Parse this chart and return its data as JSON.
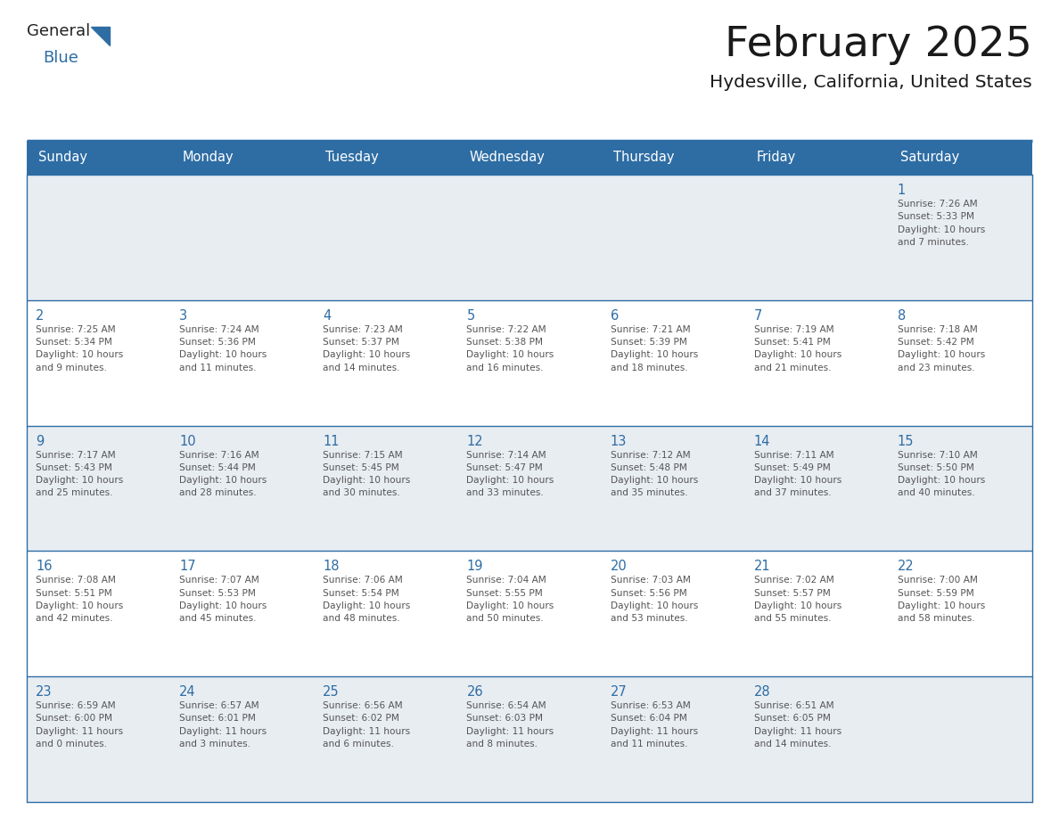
{
  "title": "February 2025",
  "subtitle": "Hydesville, California, United States",
  "header_bg": "#2E6DA4",
  "header_text_color": "#FFFFFF",
  "cell_bg_light": "#E8EDF2",
  "cell_bg_white": "#FFFFFF",
  "day_number_color": "#2E6DA4",
  "text_color": "#555555",
  "line_color": "#2E6DA4",
  "days_of_week": [
    "Sunday",
    "Monday",
    "Tuesday",
    "Wednesday",
    "Thursday",
    "Friday",
    "Saturday"
  ],
  "weeks": [
    [
      {
        "day": "",
        "info": ""
      },
      {
        "day": "",
        "info": ""
      },
      {
        "day": "",
        "info": ""
      },
      {
        "day": "",
        "info": ""
      },
      {
        "day": "",
        "info": ""
      },
      {
        "day": "",
        "info": ""
      },
      {
        "day": "1",
        "info": "Sunrise: 7:26 AM\nSunset: 5:33 PM\nDaylight: 10 hours\nand 7 minutes."
      }
    ],
    [
      {
        "day": "2",
        "info": "Sunrise: 7:25 AM\nSunset: 5:34 PM\nDaylight: 10 hours\nand 9 minutes."
      },
      {
        "day": "3",
        "info": "Sunrise: 7:24 AM\nSunset: 5:36 PM\nDaylight: 10 hours\nand 11 minutes."
      },
      {
        "day": "4",
        "info": "Sunrise: 7:23 AM\nSunset: 5:37 PM\nDaylight: 10 hours\nand 14 minutes."
      },
      {
        "day": "5",
        "info": "Sunrise: 7:22 AM\nSunset: 5:38 PM\nDaylight: 10 hours\nand 16 minutes."
      },
      {
        "day": "6",
        "info": "Sunrise: 7:21 AM\nSunset: 5:39 PM\nDaylight: 10 hours\nand 18 minutes."
      },
      {
        "day": "7",
        "info": "Sunrise: 7:19 AM\nSunset: 5:41 PM\nDaylight: 10 hours\nand 21 minutes."
      },
      {
        "day": "8",
        "info": "Sunrise: 7:18 AM\nSunset: 5:42 PM\nDaylight: 10 hours\nand 23 minutes."
      }
    ],
    [
      {
        "day": "9",
        "info": "Sunrise: 7:17 AM\nSunset: 5:43 PM\nDaylight: 10 hours\nand 25 minutes."
      },
      {
        "day": "10",
        "info": "Sunrise: 7:16 AM\nSunset: 5:44 PM\nDaylight: 10 hours\nand 28 minutes."
      },
      {
        "day": "11",
        "info": "Sunrise: 7:15 AM\nSunset: 5:45 PM\nDaylight: 10 hours\nand 30 minutes."
      },
      {
        "day": "12",
        "info": "Sunrise: 7:14 AM\nSunset: 5:47 PM\nDaylight: 10 hours\nand 33 minutes."
      },
      {
        "day": "13",
        "info": "Sunrise: 7:12 AM\nSunset: 5:48 PM\nDaylight: 10 hours\nand 35 minutes."
      },
      {
        "day": "14",
        "info": "Sunrise: 7:11 AM\nSunset: 5:49 PM\nDaylight: 10 hours\nand 37 minutes."
      },
      {
        "day": "15",
        "info": "Sunrise: 7:10 AM\nSunset: 5:50 PM\nDaylight: 10 hours\nand 40 minutes."
      }
    ],
    [
      {
        "day": "16",
        "info": "Sunrise: 7:08 AM\nSunset: 5:51 PM\nDaylight: 10 hours\nand 42 minutes."
      },
      {
        "day": "17",
        "info": "Sunrise: 7:07 AM\nSunset: 5:53 PM\nDaylight: 10 hours\nand 45 minutes."
      },
      {
        "day": "18",
        "info": "Sunrise: 7:06 AM\nSunset: 5:54 PM\nDaylight: 10 hours\nand 48 minutes."
      },
      {
        "day": "19",
        "info": "Sunrise: 7:04 AM\nSunset: 5:55 PM\nDaylight: 10 hours\nand 50 minutes."
      },
      {
        "day": "20",
        "info": "Sunrise: 7:03 AM\nSunset: 5:56 PM\nDaylight: 10 hours\nand 53 minutes."
      },
      {
        "day": "21",
        "info": "Sunrise: 7:02 AM\nSunset: 5:57 PM\nDaylight: 10 hours\nand 55 minutes."
      },
      {
        "day": "22",
        "info": "Sunrise: 7:00 AM\nSunset: 5:59 PM\nDaylight: 10 hours\nand 58 minutes."
      }
    ],
    [
      {
        "day": "23",
        "info": "Sunrise: 6:59 AM\nSunset: 6:00 PM\nDaylight: 11 hours\nand 0 minutes."
      },
      {
        "day": "24",
        "info": "Sunrise: 6:57 AM\nSunset: 6:01 PM\nDaylight: 11 hours\nand 3 minutes."
      },
      {
        "day": "25",
        "info": "Sunrise: 6:56 AM\nSunset: 6:02 PM\nDaylight: 11 hours\nand 6 minutes."
      },
      {
        "day": "26",
        "info": "Sunrise: 6:54 AM\nSunset: 6:03 PM\nDaylight: 11 hours\nand 8 minutes."
      },
      {
        "day": "27",
        "info": "Sunrise: 6:53 AM\nSunset: 6:04 PM\nDaylight: 11 hours\nand 11 minutes."
      },
      {
        "day": "28",
        "info": "Sunrise: 6:51 AM\nSunset: 6:05 PM\nDaylight: 11 hours\nand 14 minutes."
      },
      {
        "day": "",
        "info": ""
      }
    ]
  ]
}
